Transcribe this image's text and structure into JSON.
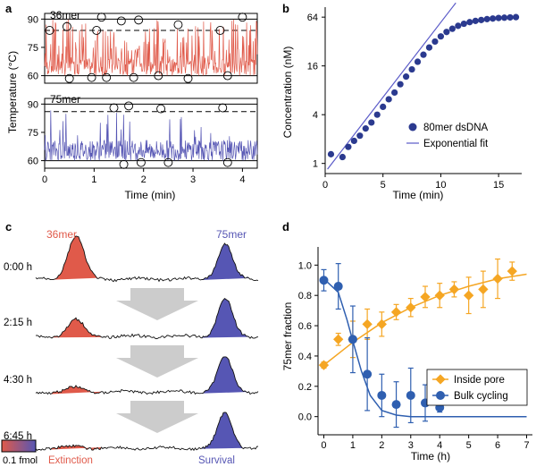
{
  "panels": {
    "a": {
      "label": "a"
    },
    "b": {
      "label": "b"
    },
    "c": {
      "label": "c"
    },
    "d": {
      "label": "d"
    }
  },
  "colors": {
    "red": "#e05a4a",
    "red_light": "#f2a79a",
    "blue": "#5656b4",
    "blue_light": "#9c9cd6",
    "navy": "#2b3a8f",
    "orange": "#f5a623",
    "dot_blue": "#2f5fb0",
    "gray_arrow": "#cccccc",
    "black": "#000000"
  },
  "chart_data": [
    {
      "id": "a-top",
      "type": "line",
      "series_name": "36mer",
      "ylabel": "Temperature (°C)",
      "ylim": [
        56,
        93
      ],
      "yticks": [
        60,
        75,
        90
      ],
      "hot_line": 90,
      "dashed_line": 84,
      "cold_line": 60,
      "x_range": [
        0,
        4.3
      ],
      "circles": [
        {
          "t": 0.1,
          "T": 84
        },
        {
          "t": 0.5,
          "T": 58.5
        },
        {
          "t": 0.45,
          "T": 86
        },
        {
          "t": 0.95,
          "T": 59
        },
        {
          "t": 1.05,
          "T": 84
        },
        {
          "t": 1.15,
          "T": 91
        },
        {
          "t": 1.25,
          "T": 59
        },
        {
          "t": 1.55,
          "T": 89
        },
        {
          "t": 1.8,
          "T": 59
        },
        {
          "t": 1.9,
          "T": 89.5
        },
        {
          "t": 2.3,
          "T": 60
        },
        {
          "t": 2.7,
          "T": 87
        },
        {
          "t": 2.9,
          "T": 58.5
        },
        {
          "t": 3.55,
          "T": 84
        },
        {
          "t": 3.7,
          "T": 60
        },
        {
          "t": 4.0,
          "T": 91
        }
      ]
    },
    {
      "id": "a-bottom",
      "type": "line",
      "series_name": "75mer",
      "xlabel": "Time (min)",
      "ylim": [
        56,
        93
      ],
      "yticks": [
        60,
        75,
        90
      ],
      "xticks": [
        0,
        1,
        2,
        3,
        4
      ],
      "x_range": [
        0,
        4.3
      ],
      "hot_line": 90,
      "dashed_line": 86,
      "cold_line": 60,
      "circles": [
        {
          "t": 1.4,
          "T": 88
        },
        {
          "t": 1.7,
          "T": 89
        },
        {
          "t": 1.6,
          "T": 58
        },
        {
          "t": 1.95,
          "T": 59
        },
        {
          "t": 2.35,
          "T": 87.5
        },
        {
          "t": 2.5,
          "T": 59
        },
        {
          "t": 3.6,
          "T": 88
        },
        {
          "t": 3.7,
          "T": 59
        }
      ]
    },
    {
      "id": "b",
      "type": "scatter",
      "title": "",
      "xlabel": "Time (min)",
      "ylabel": "Concentration (nM)",
      "yscale": "log2",
      "xlim": [
        0,
        17
      ],
      "ylim": [
        0.75,
        85
      ],
      "xticks": [
        0,
        5,
        10,
        15
      ],
      "yticks": [
        1,
        4,
        16,
        64
      ],
      "series": [
        {
          "name": "80mer dsDNA",
          "x": [
            0.5,
            1.5,
            2.0,
            2.5,
            3.0,
            3.5,
            4.0,
            4.5,
            5.0,
            5.5,
            6.0,
            6.5,
            7.0,
            7.5,
            8.0,
            8.5,
            9.0,
            9.5,
            10.0,
            10.5,
            11.0,
            11.5,
            12.0,
            12.5,
            13.0,
            13.5,
            14.0,
            14.5,
            15.0,
            15.5,
            16.0,
            16.5
          ],
          "y": [
            1.3,
            1.2,
            1.6,
            1.9,
            2.2,
            2.7,
            3.2,
            4.0,
            5.0,
            6.2,
            7.5,
            9.5,
            11.8,
            14.5,
            18.0,
            22.0,
            27.0,
            32.0,
            37.0,
            42.0,
            46.0,
            50.0,
            53.0,
            55.5,
            57.5,
            59.0,
            60.5,
            61.5,
            62.5,
            63.0,
            63.5,
            64.0
          ]
        },
        {
          "name": "Exponential fit",
          "fit_start": [
            0.2,
            0.85
          ],
          "fit_end": [
            11.3,
            96
          ]
        }
      ],
      "legend_position": "bottom-right"
    },
    {
      "id": "c",
      "type": "area",
      "series": [
        {
          "name": "36mer",
          "peak_heights": [
            1.0,
            0.38,
            0.1,
            0.05
          ]
        },
        {
          "name": "75mer",
          "peak_heights": [
            0.82,
            0.88,
            0.82,
            0.82
          ]
        }
      ],
      "time_points": [
        "0:00 h",
        "2:15 h",
        "4:30 h",
        "6:45 h"
      ],
      "scale_label": "0.1 fmol",
      "left_caption": "Extinction",
      "right_caption": "Survival"
    },
    {
      "id": "d",
      "type": "scatter",
      "xlabel": "Time (h)",
      "ylabel": "75mer fraction",
      "xlim": [
        -0.2,
        7.2
      ],
      "ylim": [
        -0.12,
        1.12
      ],
      "xticks": [
        0,
        1,
        2,
        3,
        4,
        5,
        6,
        7
      ],
      "yticks": [
        0.0,
        0.2,
        0.4,
        0.6,
        0.8,
        1.0
      ],
      "series": [
        {
          "name": "Inside pore",
          "x": [
            0,
            0.5,
            1.0,
            1.5,
            2.0,
            2.5,
            3.0,
            3.5,
            4.0,
            4.5,
            5.0,
            5.5,
            6.0,
            6.5
          ],
          "y": [
            0.34,
            0.51,
            0.51,
            0.61,
            0.61,
            0.69,
            0.72,
            0.79,
            0.8,
            0.84,
            0.8,
            0.84,
            0.91,
            0.96
          ],
          "err": [
            0.02,
            0.04,
            0.12,
            0.1,
            0.08,
            0.05,
            0.06,
            0.07,
            0.08,
            0.05,
            0.12,
            0.12,
            0.13,
            0.06
          ],
          "fit": [
            [
              0,
              0.34
            ],
            [
              1,
              0.49
            ],
            [
              2,
              0.62
            ],
            [
              3,
              0.72
            ],
            [
              4,
              0.8
            ],
            [
              5,
              0.86
            ],
            [
              6,
              0.91
            ],
            [
              7,
              0.94
            ]
          ]
        },
        {
          "name": "Bulk cycling",
          "x": [
            0,
            0.5,
            1.0,
            1.5,
            2.0,
            2.5,
            3.0,
            3.5,
            4.0
          ],
          "y": [
            0.9,
            0.86,
            0.51,
            0.28,
            0.14,
            0.08,
            0.14,
            0.09,
            0.06
          ],
          "err": [
            0.07,
            0.15,
            0.22,
            0.24,
            0.14,
            0.15,
            0.18,
            0.12,
            0.03
          ],
          "fit": [
            [
              0,
              0.91
            ],
            [
              0.5,
              0.82
            ],
            [
              0.8,
              0.64
            ],
            [
              1.0,
              0.5
            ],
            [
              1.3,
              0.3
            ],
            [
              1.6,
              0.14
            ],
            [
              2.0,
              0.04
            ],
            [
              2.5,
              0.01
            ],
            [
              3.0,
              0.0
            ],
            [
              7.0,
              0.0
            ]
          ]
        }
      ],
      "legend_position": "bottom-right"
    }
  ]
}
